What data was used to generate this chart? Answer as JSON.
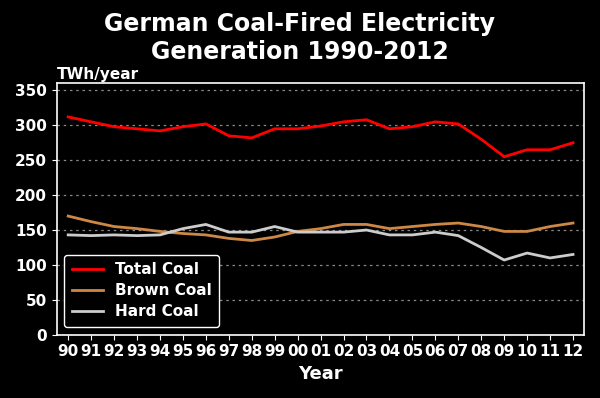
{
  "title": "German Coal-Fired Electricity\nGeneration 1990-2012",
  "xlabel": "Year",
  "ylabel_text": "TWh/year",
  "background_color": "#000000",
  "text_color": "#ffffff",
  "grid_color": "#888888",
  "year_labels": [
    "90",
    "91",
    "92",
    "93",
    "94",
    "95",
    "96",
    "97",
    "98",
    "99",
    "00",
    "01",
    "02",
    "03",
    "04",
    "05",
    "06",
    "07",
    "08",
    "09",
    "10",
    "11",
    "12"
  ],
  "total_coal": [
    312,
    305,
    298,
    295,
    292,
    298,
    302,
    285,
    282,
    295,
    295,
    299,
    305,
    308,
    295,
    298,
    305,
    302,
    280,
    255,
    265,
    265,
    275
  ],
  "brown_coal": [
    170,
    162,
    155,
    152,
    148,
    145,
    143,
    138,
    135,
    140,
    148,
    152,
    158,
    158,
    152,
    155,
    158,
    160,
    155,
    148,
    148,
    155,
    160
  ],
  "hard_coal": [
    143,
    142,
    143,
    142,
    143,
    152,
    158,
    147,
    147,
    155,
    147,
    147,
    147,
    150,
    143,
    143,
    147,
    142,
    125,
    107,
    117,
    110,
    115
  ],
  "ylim": [
    0,
    360
  ],
  "yticks": [
    0,
    50,
    100,
    150,
    200,
    250,
    300,
    350
  ],
  "total_color": "#ff0000",
  "brown_color": "#cc8844",
  "hard_color": "#cccccc",
  "linewidth": 2.0,
  "title_fontsize": 17,
  "axis_label_fontsize": 13,
  "tick_fontsize": 11,
  "legend_fontsize": 11,
  "ylabel_fontsize": 11
}
